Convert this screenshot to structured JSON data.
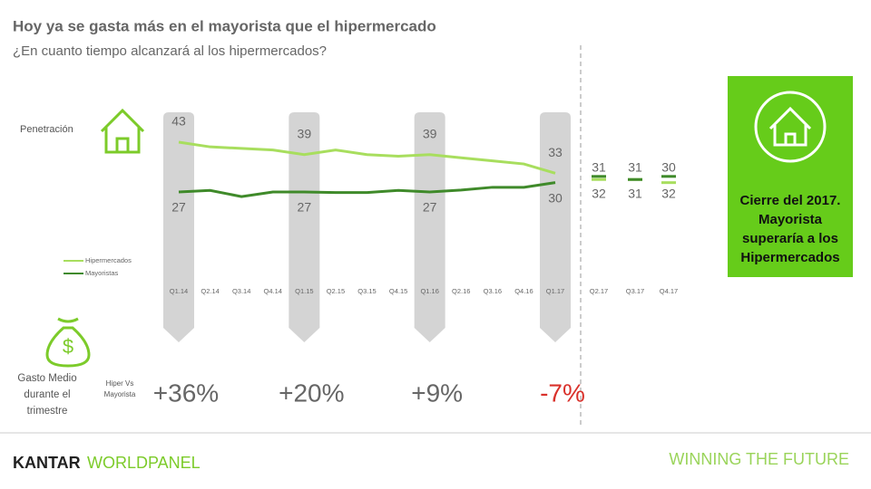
{
  "title": "Hoy ya se gasta más en el mayorista que el hipermercado",
  "subtitle": "¿En cuanto tiempo alcanzará al los hipermercados?",
  "chart_data": {
    "type": "line",
    "categories": [
      "Q1.14",
      "Q2.14",
      "Q3.14",
      "Q4.14",
      "Q1.15",
      "Q2.15",
      "Q3.15",
      "Q4.15",
      "Q1.16",
      "Q2.16",
      "Q3.16",
      "Q4.16",
      "Q1.17",
      "Q2.17",
      "Q3.17",
      "Q4.17"
    ],
    "series": [
      {
        "name": "Hipermercados",
        "color": "#a8de5e",
        "values": [
          43,
          41.5,
          41,
          40.5,
          39,
          40.5,
          39,
          38.5,
          39,
          38,
          37,
          36,
          33,
          31,
          31,
          30
        ]
      },
      {
        "name": "Mayoristas",
        "color": "#3f8a2a",
        "values": [
          27,
          27.5,
          25.5,
          27,
          27,
          26.8,
          26.8,
          27.5,
          27,
          27.6,
          28.5,
          28.5,
          30,
          32,
          31,
          32
        ]
      }
    ],
    "ylim": [
      20,
      50
    ]
  },
  "penetration_label": "Penetración",
  "spend": {
    "label": [
      "Gasto Medio",
      "durante el",
      "trimestre"
    ],
    "comparison": [
      "Hiper Vs",
      "Mayorista"
    ],
    "values": [
      "+36%",
      "+20%",
      "+9%",
      "-7%"
    ]
  },
  "callout": [
    "Cierre del 2017.",
    "Mayorista",
    "superaría a los",
    "Hipermercados"
  ],
  "footer": {
    "brand": "KANTAR",
    "brand2": "WORLDPANEL",
    "tagline": "WINNING THE FUTURE"
  }
}
